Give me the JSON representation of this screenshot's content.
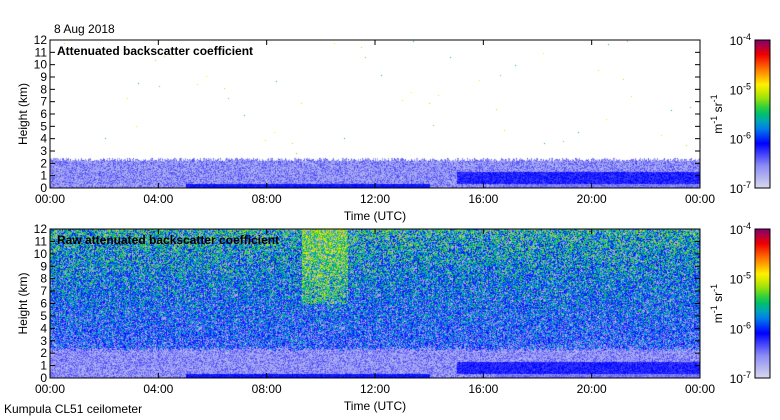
{
  "date": "8 Aug 2018",
  "footer": "Kumpula CL51 ceilometer",
  "chart_data": [
    {
      "type": "heatmap",
      "title": "Attenuated backscatter coefficient",
      "xlabel": "Time (UTC)",
      "ylabel": "Height (km)",
      "xticks": [
        "00:00",
        "04:00",
        "08:00",
        "12:00",
        "16:00",
        "20:00",
        "00:00"
      ],
      "yticks": [
        "0",
        "1",
        "2",
        "3",
        "4",
        "5",
        "6",
        "7",
        "8",
        "9",
        "10",
        "11",
        "12"
      ],
      "ylim": [
        0,
        12
      ],
      "xlim_hours": [
        0,
        24
      ],
      "colorbar": {
        "label_base": "m",
        "label_exp1": "-1",
        "label_mid": " sr",
        "label_exp2": "-1",
        "ticks": [
          {
            "base": "10",
            "exp": "-4"
          },
          {
            "base": "10",
            "exp": "-5"
          },
          {
            "base": "10",
            "exp": "-6"
          },
          {
            "base": "10",
            "exp": "-7"
          }
        ],
        "range_log10": [
          -7,
          -4
        ]
      },
      "description_features": {
        "boundary_layer_top_km": 2.2,
        "noise": "low",
        "layer_16_24h_km": [
          0.5,
          2.0
        ]
      }
    },
    {
      "type": "heatmap",
      "title": "Raw attenuated backscatter coefficient",
      "xlabel": "Time (UTC)",
      "ylabel": "Height (km)",
      "xticks": [
        "00:00",
        "04:00",
        "08:00",
        "12:00",
        "16:00",
        "20:00",
        "00:00"
      ],
      "yticks": [
        "0",
        "1",
        "2",
        "3",
        "4",
        "5",
        "6",
        "7",
        "8",
        "9",
        "10",
        "11",
        "12"
      ],
      "ylim": [
        0,
        12
      ],
      "xlim_hours": [
        0,
        24
      ],
      "colorbar": {
        "label_base": "m",
        "label_exp1": "-1",
        "label_mid": " sr",
        "label_exp2": "-1",
        "ticks": [
          {
            "base": "10",
            "exp": "-4"
          },
          {
            "base": "10",
            "exp": "-5"
          },
          {
            "base": "10",
            "exp": "-6"
          },
          {
            "base": "10",
            "exp": "-7"
          }
        ],
        "range_log10": [
          -7,
          -4
        ]
      },
      "description_features": {
        "boundary_layer_top_km": 2.2,
        "noise": "high",
        "noise_peak_hours": [
          9.5,
          11
        ]
      }
    }
  ]
}
